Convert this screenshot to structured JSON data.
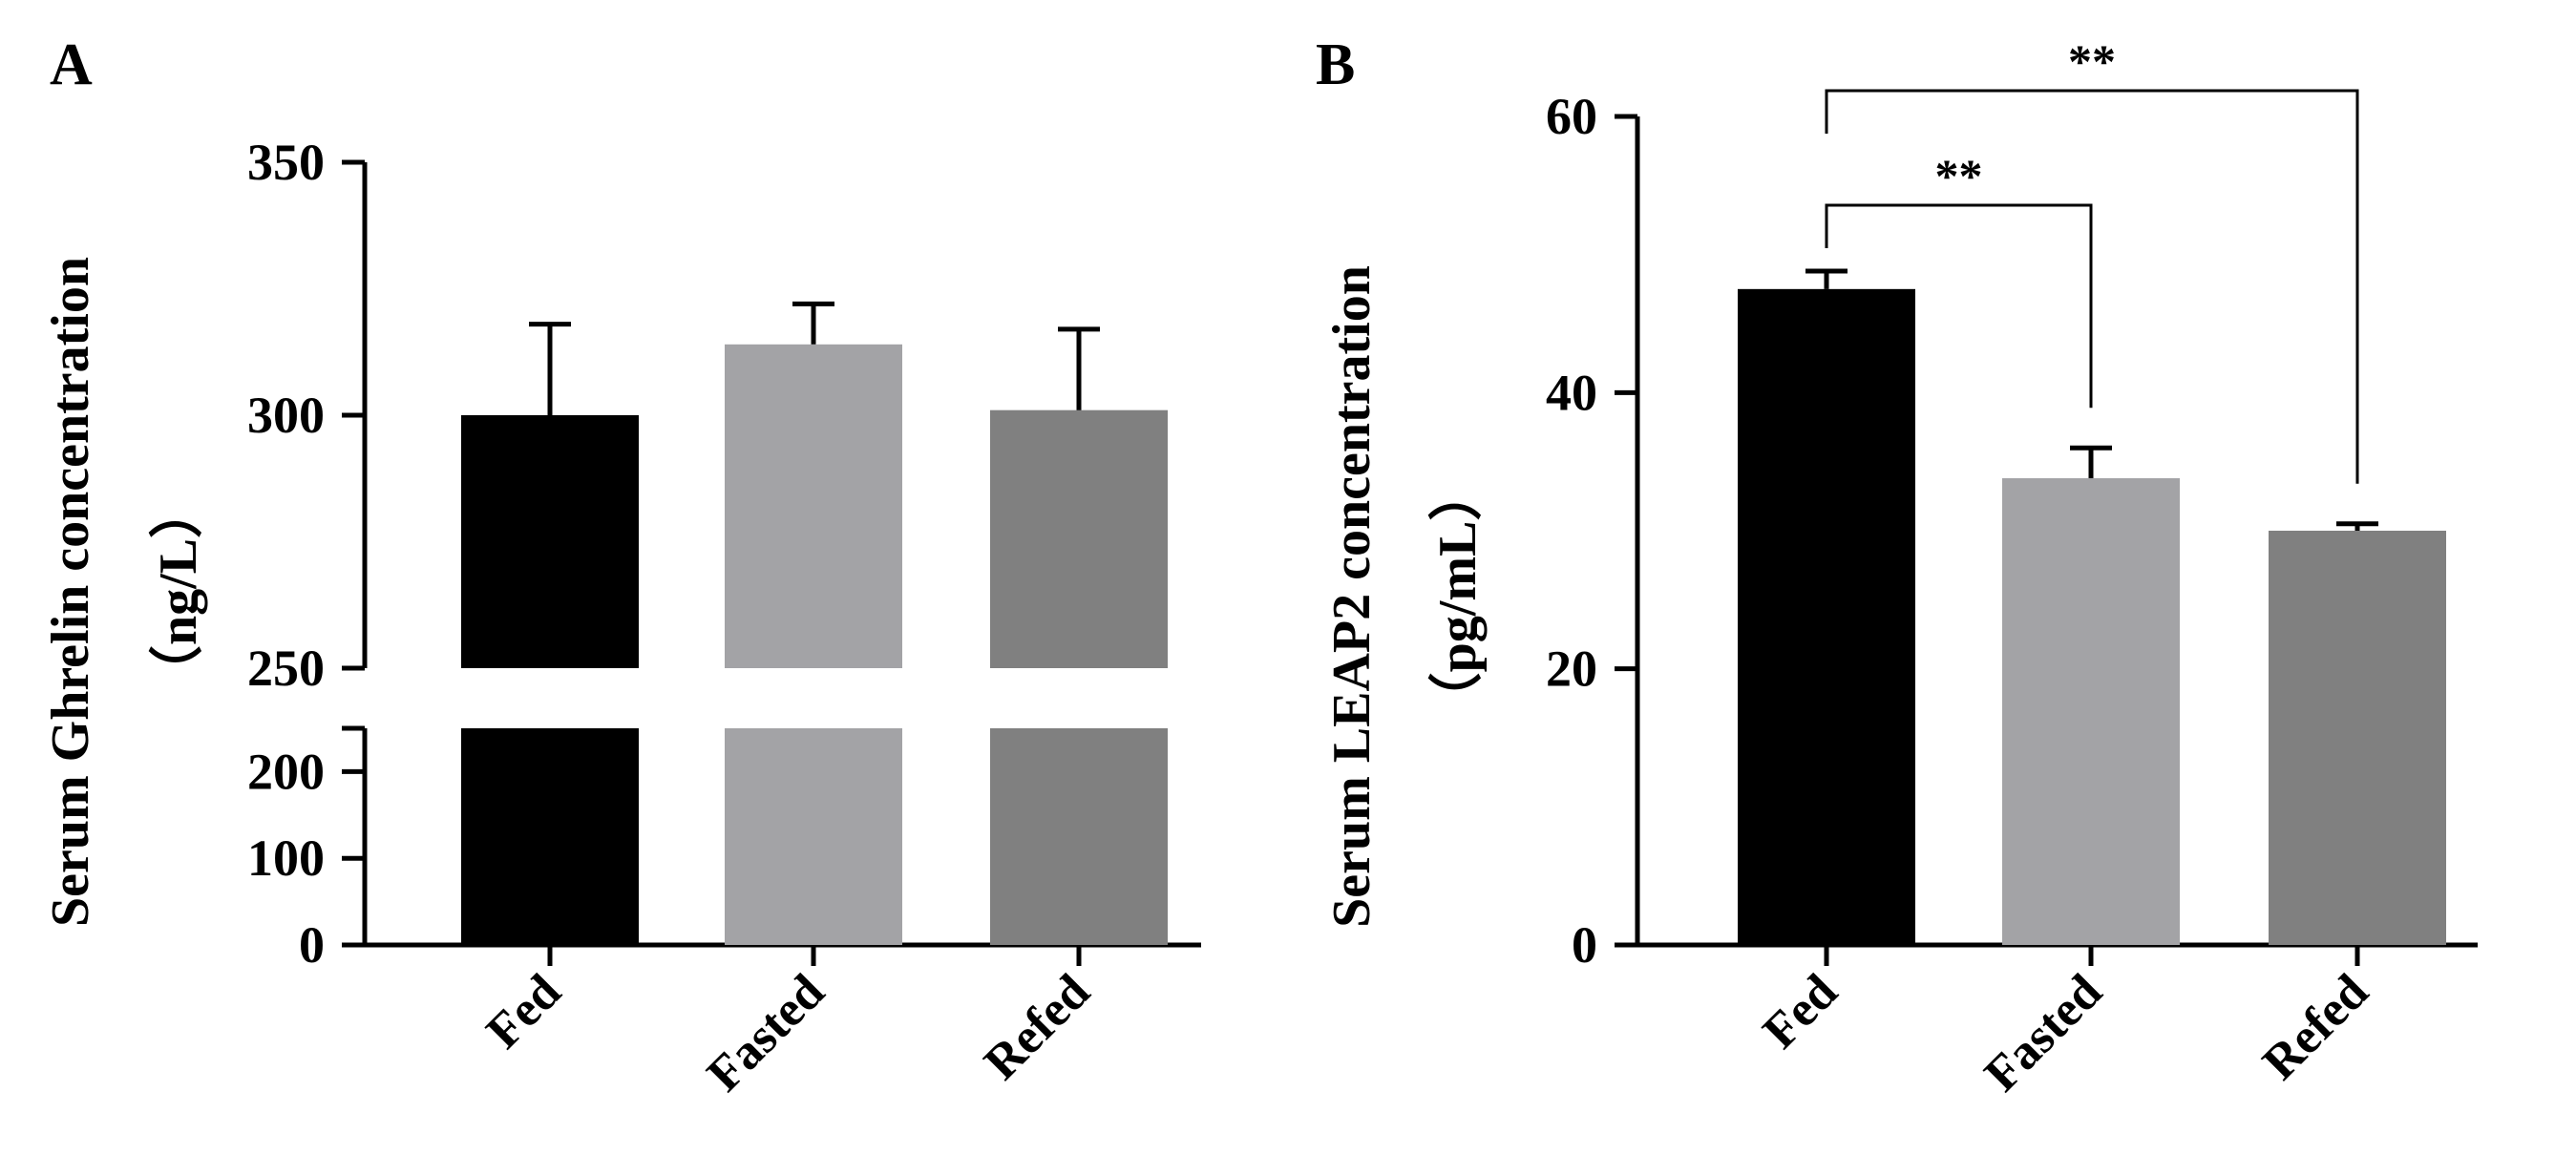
{
  "chart_data": [
    {
      "type": "bar",
      "panel_label": "A",
      "categories": [
        "Fed",
        "Fasted",
        "Refed"
      ],
      "values": [
        300,
        314,
        301
      ],
      "error_bars": [
        18,
        8,
        16
      ],
      "colors": [
        "#000000",
        "#a3a3a6",
        "#808080"
      ],
      "ylabel_line1": "Serum Ghrelin concentration",
      "ylabel_line2": "（ng/L）",
      "y_axis_break": true,
      "y_segments": [
        {
          "range": [
            0,
            250
          ],
          "ticks": [
            0,
            100,
            200
          ]
        },
        {
          "range": [
            250,
            350
          ],
          "ticks": [
            250,
            300,
            350
          ]
        }
      ],
      "ytick_labels": [
        "0",
        "100",
        "200",
        "250",
        "300",
        "350"
      ],
      "grid": false,
      "legend": "none"
    },
    {
      "type": "bar",
      "panel_label": "B",
      "categories": [
        "Fed",
        "Fasted",
        "Refed"
      ],
      "values": [
        47.5,
        33.8,
        30
      ],
      "error_bars": [
        1.3,
        2.2,
        0.5
      ],
      "colors": [
        "#000000",
        "#a3a3a6",
        "#808080"
      ],
      "ylabel_line1": "Serum LEAP2 concentration",
      "ylabel_line2": "（pg/mL）",
      "ylim": [
        0,
        60
      ],
      "ytick_labels": [
        "0",
        "20",
        "40",
        "60"
      ],
      "significance": [
        {
          "from": "Fed",
          "to": "Fasted",
          "label": "**"
        },
        {
          "from": "Fed",
          "to": "Refed",
          "label": "**"
        }
      ],
      "grid": false,
      "legend": "none"
    }
  ]
}
